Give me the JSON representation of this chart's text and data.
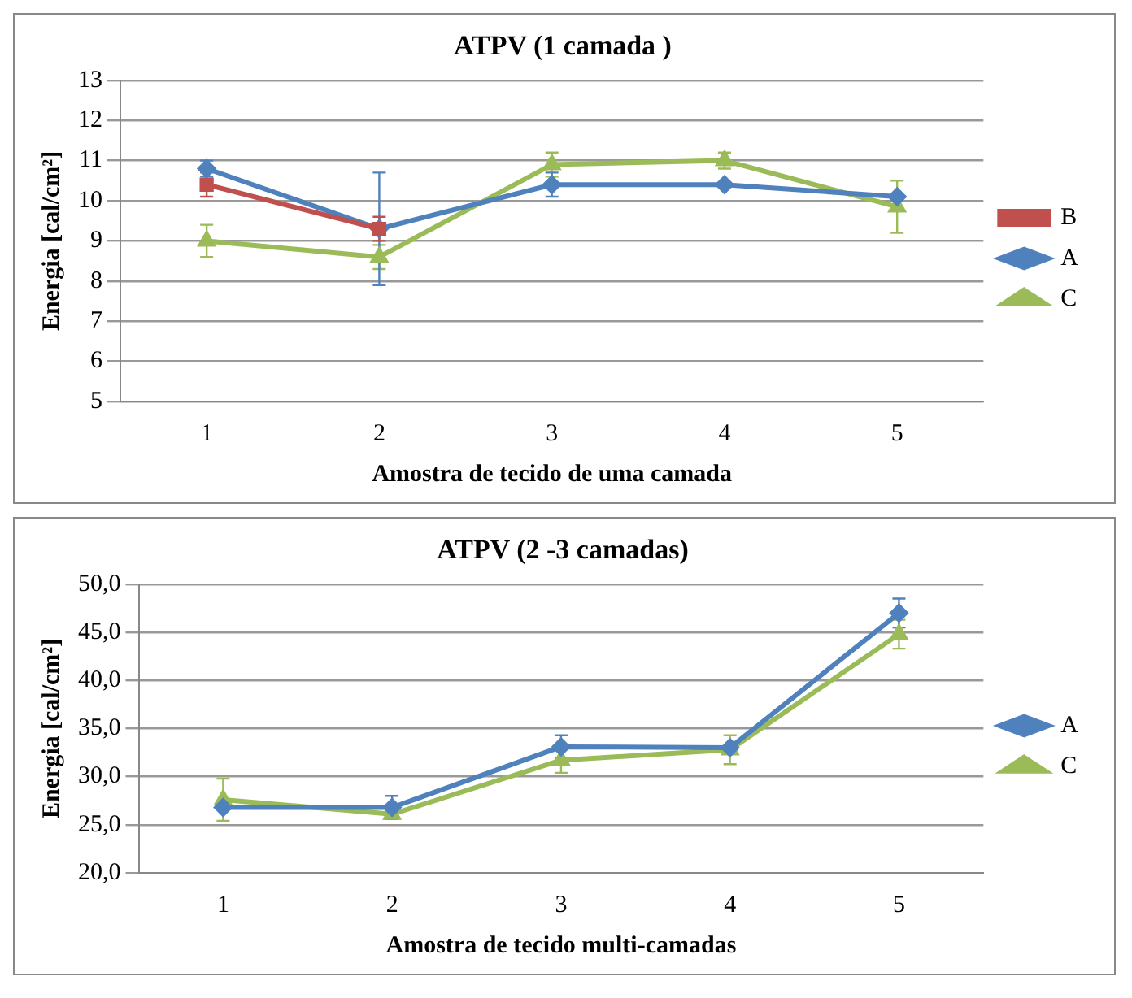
{
  "chart_data": [
    {
      "type": "line",
      "title": "ATPV (1 camada )",
      "xlabel": "Amostra de tecido de uma camada",
      "ylabel": "Energia [cal/cm²]",
      "categories": [
        "1",
        "2",
        "3",
        "4",
        "5"
      ],
      "ylim": [
        5,
        13
      ],
      "yticks": [
        5,
        6,
        7,
        8,
        9,
        10,
        11,
        12,
        13
      ],
      "grid": "y",
      "legend": "right",
      "series": [
        {
          "name": "B",
          "color": "#c0504d",
          "marker": "square",
          "values": [
            10.4,
            9.3,
            null,
            null,
            null
          ],
          "errors": [
            0.3,
            0.3,
            null,
            null,
            null
          ]
        },
        {
          "name": "A",
          "color": "#4f81bd",
          "marker": "diamond",
          "values": [
            10.8,
            9.3,
            10.4,
            10.4,
            10.1
          ],
          "errors": [
            0.2,
            1.4,
            0.3,
            null,
            null
          ]
        },
        {
          "name": "C",
          "color": "#9bbb59",
          "marker": "triangle",
          "values": [
            9.0,
            8.6,
            10.9,
            11.0,
            9.85
          ],
          "errors": [
            0.4,
            0.3,
            0.3,
            0.2,
            0.65
          ]
        }
      ]
    },
    {
      "type": "line",
      "title": "ATPV (2 -3 camadas)",
      "xlabel": "Amostra de tecido multi-camadas",
      "ylabel": "Energia [cal/cm²]",
      "categories": [
        "1",
        "2",
        "3",
        "4",
        "5"
      ],
      "ylim": [
        20,
        50
      ],
      "yticks": [
        {
          "value": 20,
          "label": "20,0"
        },
        {
          "value": 25,
          "label": "25,0"
        },
        {
          "value": 30,
          "label": "30,0"
        },
        {
          "value": 35,
          "label": "35,0"
        },
        {
          "value": 40,
          "label": "40,0"
        },
        {
          "value": 45,
          "label": "45,0"
        },
        {
          "value": 50,
          "label": "50,0"
        }
      ],
      "grid": "y",
      "legend": "right",
      "series": [
        {
          "name": "A",
          "color": "#4f81bd",
          "marker": "diamond",
          "values": [
            26.8,
            26.8,
            33.1,
            33.0,
            47.0
          ],
          "errors": [
            null,
            1.2,
            1.2,
            null,
            1.5
          ]
        },
        {
          "name": "C",
          "color": "#9bbb59",
          "marker": "triangle",
          "values": [
            27.6,
            26.1,
            31.7,
            32.8,
            44.8
          ],
          "errors": [
            2.2,
            0.5,
            1.3,
            1.5,
            1.5
          ]
        }
      ]
    }
  ]
}
